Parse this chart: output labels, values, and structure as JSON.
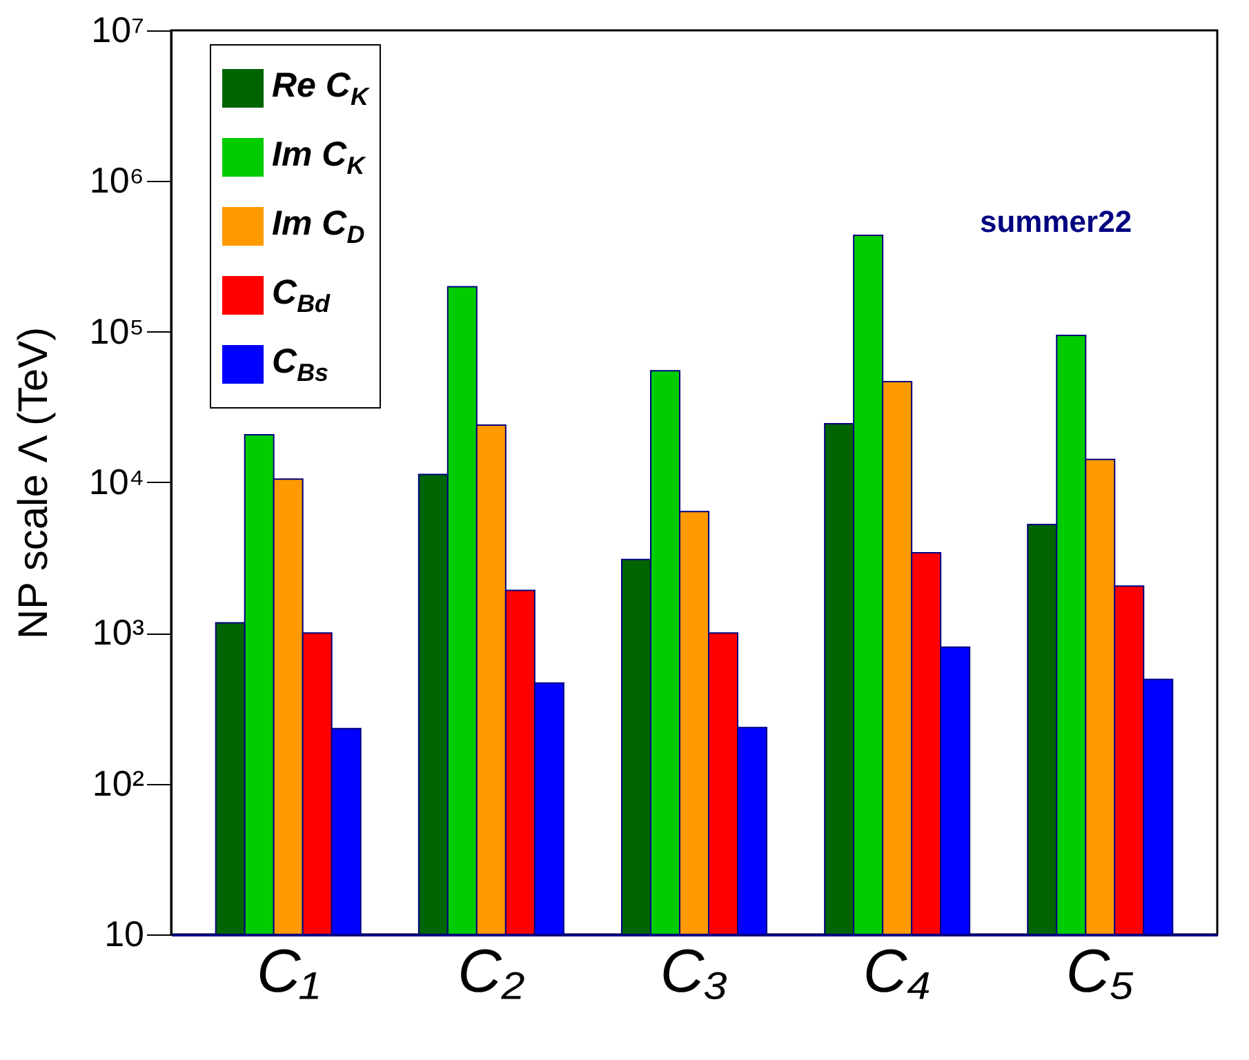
{
  "chart_data": {
    "type": "bar",
    "ylabel": "NP scale Λ (TeV)",
    "categories": [
      "C₁",
      "C₂",
      "C₃",
      "C₄",
      "C₅"
    ],
    "series": [
      {
        "name": "Re C$_{K}$",
        "color": "#006400",
        "values": [
          1170,
          11300,
          3080,
          24500,
          5260
        ]
      },
      {
        "name": "Im C$_{K}$",
        "color": "#00cc00",
        "values": [
          20700,
          199000,
          55000,
          436000,
          94500
        ]
      },
      {
        "name": "Im C$_{D}$",
        "color": "#ff9900",
        "values": [
          10500,
          24000,
          6400,
          46600,
          14200
        ]
      },
      {
        "name": "C$_{Bd}$",
        "color": "#ff0000",
        "values": [
          1000,
          1920,
          1000,
          3410,
          2050
        ]
      },
      {
        "name": "C$_{Bs}$",
        "color": "#0000ff",
        "values": [
          232,
          466,
          236,
          806,
          493
        ]
      }
    ],
    "log": "y",
    "ylim": [
      10,
      10000000
    ],
    "yticks": [
      10,
      {
        "value": 100,
        "label": "10²"
      },
      {
        "value": 1000,
        "label": "10³"
      },
      {
        "value": 10000,
        "label": "10⁴"
      },
      {
        "value": 100000,
        "label": "10⁵"
      },
      {
        "value": 1000000,
        "label": "10⁶"
      },
      {
        "value": 10000000,
        "label": "10⁷"
      }
    ],
    "grid": false,
    "legend": "top left",
    "annotations": [
      "summer22"
    ]
  }
}
